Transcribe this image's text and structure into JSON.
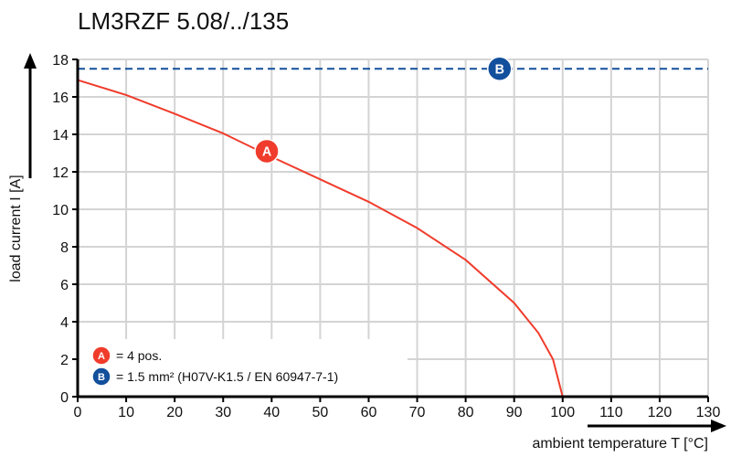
{
  "chart_data": {
    "type": "line",
    "title": "LM3RZF 5.08/../135",
    "xlabel": "ambient temperature T [°C]",
    "ylabel": "load current I [A]",
    "xlim": [
      0,
      130
    ],
    "ylim": [
      0,
      18
    ],
    "xticks": [
      0,
      10,
      20,
      30,
      40,
      50,
      60,
      70,
      80,
      90,
      100,
      110,
      120,
      130
    ],
    "yticks": [
      0,
      2,
      4,
      6,
      8,
      10,
      12,
      14,
      16,
      18
    ],
    "grid": true,
    "series": [
      {
        "name": "A",
        "color": "#f03c2c",
        "x": [
          0,
          10,
          20,
          30,
          40,
          50,
          60,
          70,
          80,
          90,
          95,
          98,
          100
        ],
        "y": [
          16.9,
          16.1,
          15.1,
          14.05,
          12.8,
          11.6,
          10.4,
          9.0,
          7.3,
          5.0,
          3.4,
          2.0,
          0
        ]
      },
      {
        "name": "B",
        "color": "#124f9c",
        "style": "dashed",
        "x": [
          0,
          130
        ],
        "y": [
          17.5,
          17.5
        ]
      }
    ],
    "markers": [
      {
        "label": "A",
        "x": 39,
        "y": 13.1,
        "color": "#f03c2c"
      },
      {
        "label": "B",
        "x": 87,
        "y": 17.5,
        "color": "#124f9c"
      }
    ],
    "legend": {
      "placement": "bottom-left",
      "entries": [
        {
          "marker": "A",
          "text": "= 4 pos."
        },
        {
          "marker": "B",
          "text": "= 1.5 mm² (H07V-K1.5 / EN 60947-7-1)"
        }
      ]
    }
  }
}
